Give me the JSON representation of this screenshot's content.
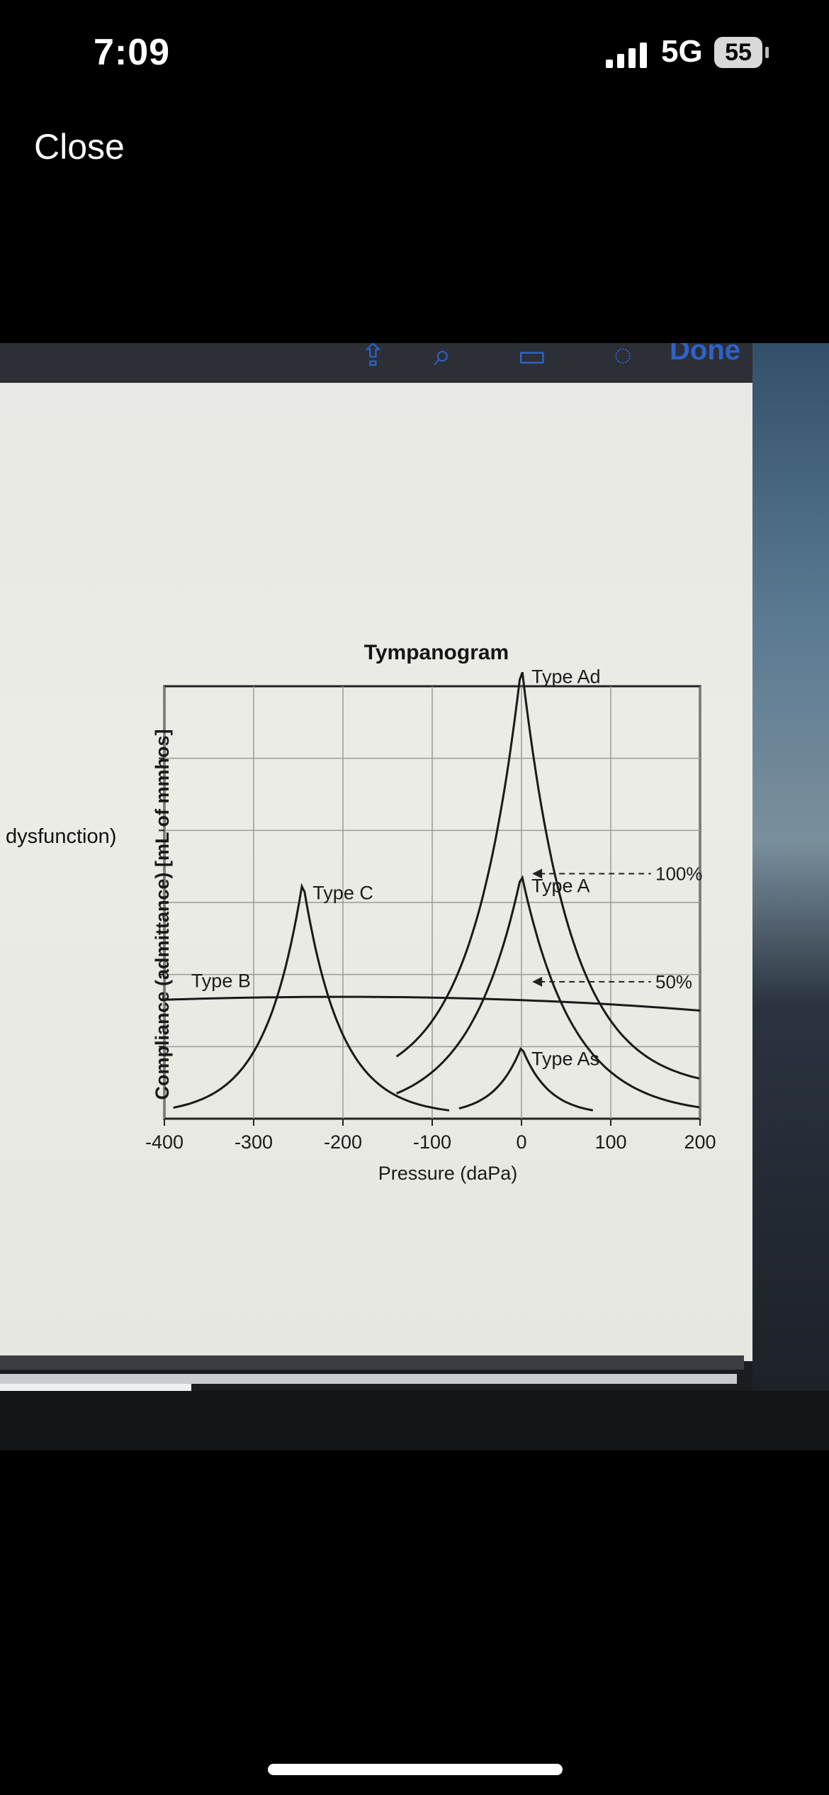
{
  "status_bar": {
    "time": "7:09",
    "network": "5G",
    "battery": "55"
  },
  "nav": {
    "close_label": "Close"
  },
  "toolbar": {
    "icons": [
      "share-icon",
      "search-icon",
      "markup-icon",
      "pen-icon"
    ],
    "done_label": "Done"
  },
  "side_text": "dysfunction)",
  "chart_data": {
    "type": "line",
    "title": "Tympanogram",
    "xlabel": "Pressure (daPa)",
    "ylabel": "Compliance (admittance) [mL of mmhos]",
    "xlim": [
      -400,
      200
    ],
    "x_ticks": [
      "-400",
      "-300",
      "-200",
      "-100",
      "0",
      "100",
      "200"
    ],
    "ylim": [
      0,
      6
    ],
    "grid": true,
    "series": [
      {
        "name": "Type B",
        "peak_x": null,
        "peak_y": 1.65,
        "shape": "flat"
      },
      {
        "name": "Type C",
        "peak_x": -245,
        "peak_y": 3.3,
        "shape": "peak"
      },
      {
        "name": "Type Ad",
        "peak_x": 0,
        "peak_y": 6.3,
        "shape": "peak"
      },
      {
        "name": "Type A",
        "peak_x": 0,
        "peak_y": 3.4,
        "shape": "peak"
      },
      {
        "name": "Type As",
        "peak_x": 0,
        "peak_y": 1.0,
        "shape": "peak"
      }
    ],
    "annotations": [
      {
        "text": "100%",
        "y": 3.4
      },
      {
        "text": "50%",
        "y": 1.9
      }
    ]
  }
}
